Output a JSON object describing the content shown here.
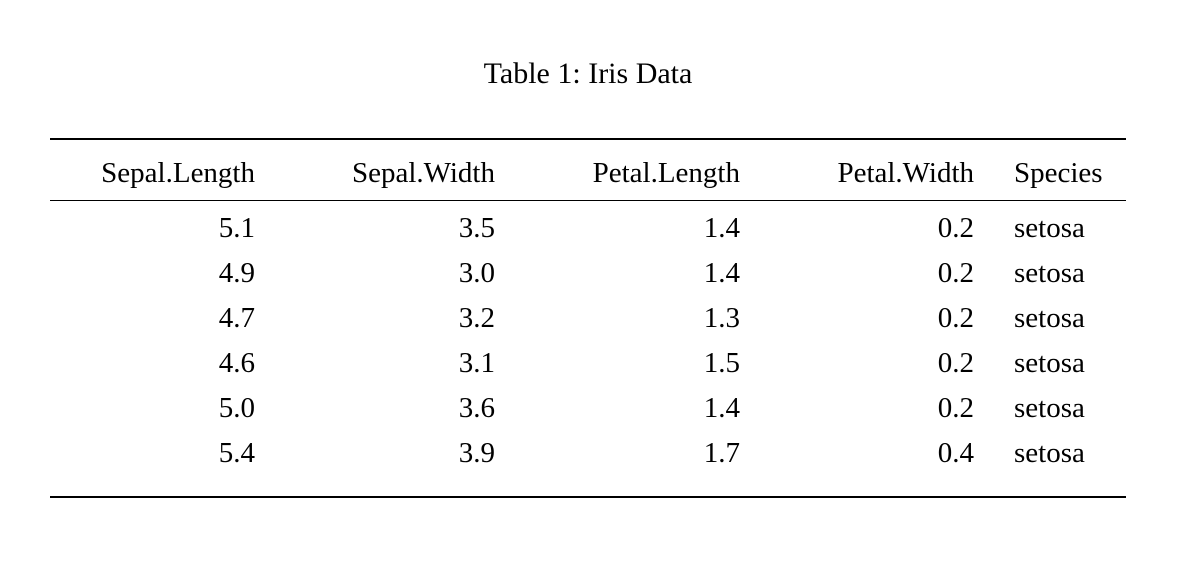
{
  "document": {
    "caption": "Table 1: Iris Data"
  },
  "table": {
    "columns": [
      "Sepal.Length",
      "Sepal.Width",
      "Petal.Length",
      "Petal.Width",
      "Species"
    ],
    "rows": [
      [
        "5.1",
        "3.5",
        "1.4",
        "0.2",
        "setosa"
      ],
      [
        "4.9",
        "3.0",
        "1.4",
        "0.2",
        "setosa"
      ],
      [
        "4.7",
        "3.2",
        "1.3",
        "0.2",
        "setosa"
      ],
      [
        "4.6",
        "3.1",
        "1.5",
        "0.2",
        "setosa"
      ],
      [
        "5.0",
        "3.6",
        "1.4",
        "0.2",
        "setosa"
      ],
      [
        "5.4",
        "3.9",
        "1.7",
        "0.4",
        "setosa"
      ]
    ]
  },
  "chart_data": {
    "type": "table",
    "title": "Table 1: Iris Data",
    "columns": [
      "Sepal.Length",
      "Sepal.Width",
      "Petal.Length",
      "Petal.Width",
      "Species"
    ],
    "rows": [
      [
        5.1,
        3.5,
        1.4,
        0.2,
        "setosa"
      ],
      [
        4.9,
        3.0,
        1.4,
        0.2,
        "setosa"
      ],
      [
        4.7,
        3.2,
        1.3,
        0.2,
        "setosa"
      ],
      [
        4.6,
        3.1,
        1.5,
        0.2,
        "setosa"
      ],
      [
        5.0,
        3.6,
        1.4,
        0.2,
        "setosa"
      ],
      [
        5.4,
        3.9,
        1.7,
        0.4,
        "setosa"
      ]
    ]
  },
  "colors": {
    "background": "#ffffff",
    "text": "#000000",
    "rule": "#000000"
  }
}
